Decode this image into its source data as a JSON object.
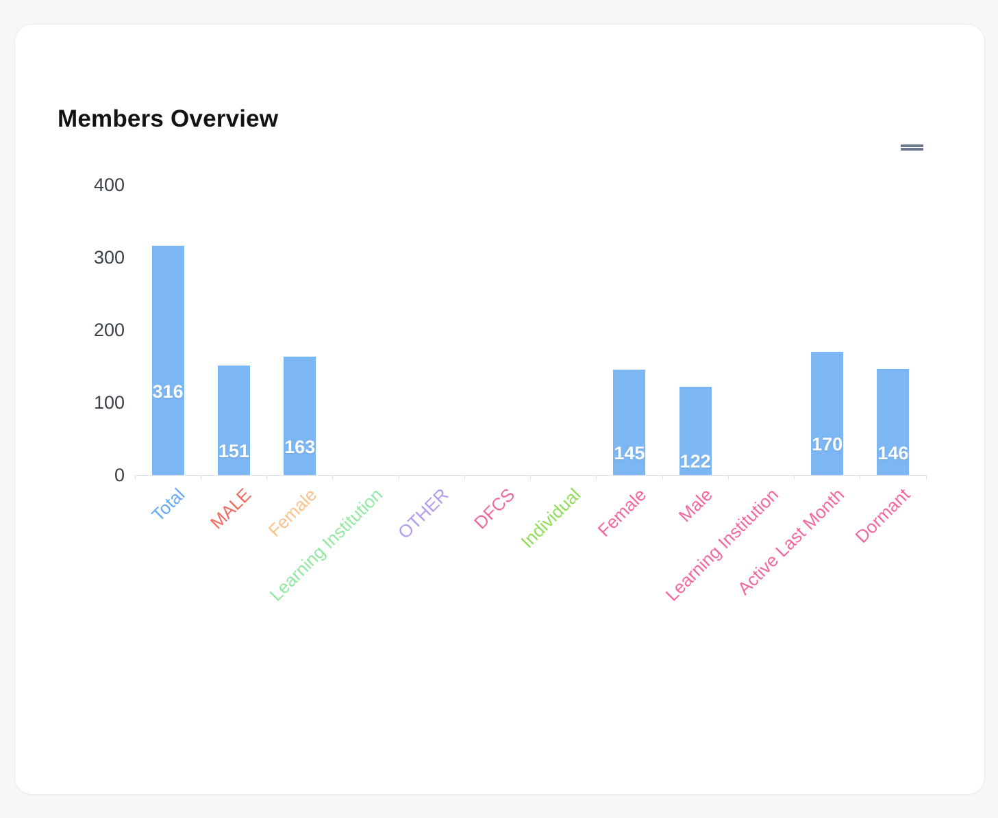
{
  "card": {
    "title": "Members Overview"
  },
  "menu": {
    "icon": "hamburger-menu-icon"
  },
  "chart_data": {
    "type": "bar",
    "title": "Members Overview",
    "categories": [
      "Total",
      "MALE",
      "Female",
      "Learning Institution",
      "OTHER",
      "DFCS",
      "Individual",
      "Female",
      "Male",
      "Learning Institution",
      "Active Last Month",
      "Dormant"
    ],
    "values": [
      316,
      151,
      163,
      0,
      0,
      0,
      0,
      145,
      122,
      0,
      170,
      146
    ],
    "label_colors": [
      "#64aaf4",
      "#f4695f",
      "#fbc28c",
      "#92e8a0",
      "#b39bf0",
      "#f4679d",
      "#8fdd54",
      "#f4679d",
      "#f4679d",
      "#f4679d",
      "#f4679d",
      "#f4679d"
    ],
    "bar_color": "#7cb7f4",
    "data_label_color": "#ffffff",
    "axis_label_color": "#3a4149",
    "ylim": [
      0,
      400
    ],
    "yticks": [
      0,
      100,
      200,
      300,
      400
    ],
    "xlabel": "",
    "ylabel": "",
    "grid": "off",
    "legend": "none"
  }
}
